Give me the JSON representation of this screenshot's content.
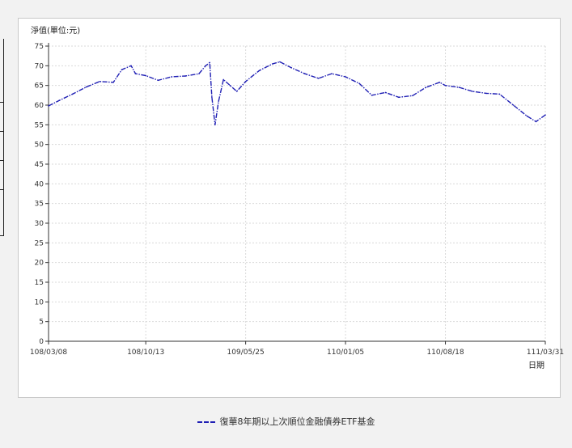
{
  "chart_data": {
    "type": "line",
    "ylabel": "淨值(單位:元)",
    "xlabel": "日期",
    "ylim": [
      0,
      75
    ],
    "ytick_step": 5,
    "grid": true,
    "legend_placement": "bottom-center",
    "x_ticks": [
      "108/03/08",
      "108/10/13",
      "109/05/25",
      "110/01/05",
      "110/08/18",
      "111/03/31"
    ],
    "series": [
      {
        "name": "復華8年期以上次順位金融債券ETF基金",
        "color": "#1f1fb4",
        "points": [
          [
            "108/03/08",
            59.8
          ],
          [
            "108/04/01",
            61.2
          ],
          [
            "108/05/01",
            62.8
          ],
          [
            "108/06/01",
            64.6
          ],
          [
            "108/07/01",
            66.0
          ],
          [
            "108/08/01",
            65.8
          ],
          [
            "108/08/20",
            69.0
          ],
          [
            "108/09/10",
            70.0
          ],
          [
            "108/09/20",
            68.0
          ],
          [
            "108/10/13",
            67.5
          ],
          [
            "108/11/10",
            66.3
          ],
          [
            "108/12/10",
            67.2
          ],
          [
            "109/01/10",
            67.4
          ],
          [
            "109/02/10",
            68.0
          ],
          [
            "109/02/25",
            70.0
          ],
          [
            "109/03/05",
            70.8
          ],
          [
            "109/03/10",
            62.0
          ],
          [
            "109/03/17",
            55.0
          ],
          [
            "109/03/25",
            61.0
          ],
          [
            "109/04/05",
            66.5
          ],
          [
            "109/04/20",
            65.0
          ],
          [
            "109/05/05",
            63.5
          ],
          [
            "109/05/25",
            66.0
          ],
          [
            "109/06/25",
            68.8
          ],
          [
            "109/07/25",
            70.5
          ],
          [
            "109/08/10",
            71.0
          ],
          [
            "109/09/05",
            69.5
          ],
          [
            "109/10/05",
            68.0
          ],
          [
            "109/11/05",
            66.8
          ],
          [
            "109/12/05",
            68.0
          ],
          [
            "110/01/05",
            67.2
          ],
          [
            "110/02/05",
            65.5
          ],
          [
            "110/03/05",
            62.5
          ],
          [
            "110/04/05",
            63.2
          ],
          [
            "110/05/05",
            62.0
          ],
          [
            "110/06/05",
            62.4
          ],
          [
            "110/07/05",
            64.5
          ],
          [
            "110/08/05",
            65.8
          ],
          [
            "110/08/18",
            65.0
          ],
          [
            "110/09/18",
            64.5
          ],
          [
            "110/10/18",
            63.5
          ],
          [
            "110/11/18",
            63.0
          ],
          [
            "110/12/18",
            62.8
          ],
          [
            "111/01/18",
            60.0
          ],
          [
            "111/02/18",
            57.2
          ],
          [
            "111/03/10",
            55.8
          ],
          [
            "111/03/31",
            57.5
          ]
        ]
      }
    ]
  }
}
